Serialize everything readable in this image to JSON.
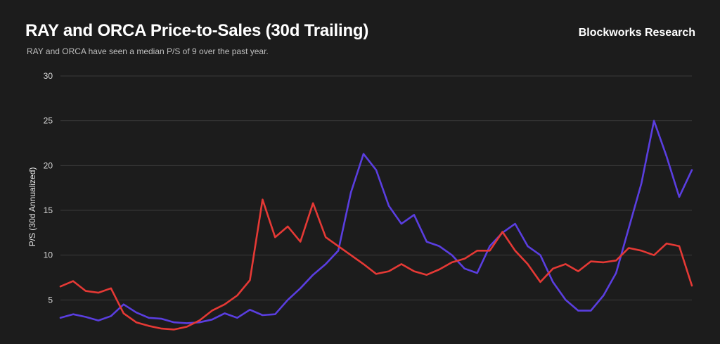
{
  "header": {
    "title": "RAY and ORCA Price-to-Sales (30d Trailing)",
    "subtitle": "RAY and ORCA have seen a median P/S of 9 over the past year.",
    "brand": "Blockworks Research"
  },
  "colors": {
    "background": "#1c1c1c",
    "grid": "#3a3a3a",
    "series_purple": "#5a3ee0",
    "series_red": "#e53935"
  },
  "chart_data": {
    "type": "line",
    "title": "RAY and ORCA Price-to-Sales (30d Trailing)",
    "subtitle": "RAY and ORCA have seen a median P/S of 9 over the past year.",
    "xlabel": "",
    "ylabel": "P/S  (30d Annualized)",
    "ylim": [
      0,
      30
    ],
    "y_ticks": [
      5,
      10,
      15,
      20,
      25,
      30
    ],
    "grid": true,
    "legend": "none",
    "x": [
      0,
      2,
      4,
      6,
      8,
      10,
      12,
      14,
      16,
      18,
      20,
      22,
      24,
      26,
      28,
      30,
      32,
      34,
      36,
      38,
      40,
      42,
      44,
      46,
      48,
      50,
      52,
      54,
      56,
      58,
      60,
      62,
      64,
      66,
      68,
      70,
      72,
      74,
      76,
      78,
      80,
      82,
      84,
      86,
      88,
      90,
      92,
      94,
      96,
      98,
      100
    ],
    "series": [
      {
        "values": [
          3.0,
          3.4,
          3.1,
          2.7,
          3.2,
          4.5,
          3.6,
          3.0,
          2.9,
          2.5,
          2.4,
          2.5,
          2.8,
          3.5,
          3.0,
          3.9,
          3.3,
          3.4,
          5.0,
          6.3,
          7.8,
          9.0,
          10.5,
          17.0,
          21.3,
          19.5,
          15.5,
          13.5,
          14.5,
          11.5,
          11.0,
          10.0,
          8.5,
          8.0,
          11.0,
          12.5,
          13.5,
          11.0,
          10.0,
          7.0,
          5.0,
          3.8,
          3.8,
          5.5,
          8.0,
          13.0,
          18.0,
          25.0,
          21.0,
          16.5,
          19.5
        ]
      },
      {
        "values": [
          6.5,
          7.1,
          6.0,
          5.8,
          6.3,
          3.5,
          2.5,
          2.1,
          1.8,
          1.7,
          2.0,
          2.7,
          3.8,
          4.5,
          5.5,
          7.2,
          16.2,
          12.0,
          13.2,
          11.5,
          15.8,
          12.0,
          11.0,
          10.0,
          9.0,
          7.9,
          8.2,
          9.0,
          8.2,
          7.8,
          8.4,
          9.2,
          9.6,
          10.5,
          10.5,
          12.6,
          10.5,
          9.0,
          7.0,
          8.5,
          9.0,
          8.2,
          9.3,
          9.2,
          9.4,
          10.8,
          10.5,
          10.0,
          11.3,
          11.0,
          6.6
        ]
      }
    ]
  }
}
